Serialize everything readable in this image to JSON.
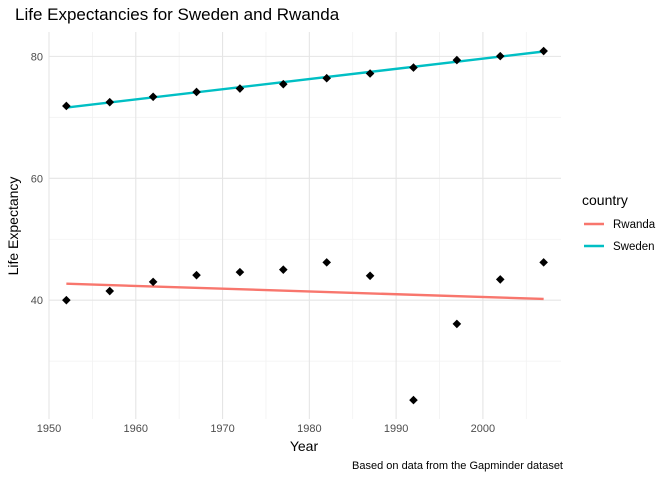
{
  "chart_data": {
    "type": "scatter",
    "title": "Life Expectancies for Sweden and Rwanda",
    "xlabel": "Year",
    "ylabel": "Life Expectancy",
    "caption": "Based on data from the Gapminder dataset",
    "xlim": [
      1950,
      2009
    ],
    "ylim": [
      20.5,
      84
    ],
    "x_ticks": [
      1950,
      1960,
      1970,
      1980,
      1990,
      2000
    ],
    "x_tick_labels": [
      "1950",
      "1960",
      "1970",
      "1980",
      "1990",
      "2000"
    ],
    "y_ticks": [
      40,
      60,
      80
    ],
    "y_tick_labels": [
      "40",
      "60",
      "80"
    ],
    "grid": true,
    "legend_placement": "right",
    "legend_title": "country",
    "point_color": "#000000",
    "points": [
      {
        "country": "Sweden",
        "x": 1952,
        "y": 71.86
      },
      {
        "country": "Sweden",
        "x": 1957,
        "y": 72.49
      },
      {
        "country": "Sweden",
        "x": 1962,
        "y": 73.37
      },
      {
        "country": "Sweden",
        "x": 1967,
        "y": 74.16
      },
      {
        "country": "Sweden",
        "x": 1972,
        "y": 74.72
      },
      {
        "country": "Sweden",
        "x": 1977,
        "y": 75.44
      },
      {
        "country": "Sweden",
        "x": 1982,
        "y": 76.42
      },
      {
        "country": "Sweden",
        "x": 1987,
        "y": 77.19
      },
      {
        "country": "Sweden",
        "x": 1992,
        "y": 78.16
      },
      {
        "country": "Sweden",
        "x": 1997,
        "y": 79.39
      },
      {
        "country": "Sweden",
        "x": 2002,
        "y": 80.04
      },
      {
        "country": "Sweden",
        "x": 2007,
        "y": 80.88
      },
      {
        "country": "Rwanda",
        "x": 1952,
        "y": 40.0
      },
      {
        "country": "Rwanda",
        "x": 1957,
        "y": 41.5
      },
      {
        "country": "Rwanda",
        "x": 1962,
        "y": 43.0
      },
      {
        "country": "Rwanda",
        "x": 1967,
        "y": 44.1
      },
      {
        "country": "Rwanda",
        "x": 1972,
        "y": 44.6
      },
      {
        "country": "Rwanda",
        "x": 1977,
        "y": 45.0
      },
      {
        "country": "Rwanda",
        "x": 1982,
        "y": 46.2
      },
      {
        "country": "Rwanda",
        "x": 1987,
        "y": 44.0
      },
      {
        "country": "Rwanda",
        "x": 1992,
        "y": 23.6
      },
      {
        "country": "Rwanda",
        "x": 1997,
        "y": 36.1
      },
      {
        "country": "Rwanda",
        "x": 2002,
        "y": 43.4
      },
      {
        "country": "Rwanda",
        "x": 2007,
        "y": 46.2
      }
    ],
    "series": [
      {
        "name": "Rwanda",
        "type": "line",
        "color": "#F8766D",
        "x": [
          1952,
          2007
        ],
        "values": [
          42.7,
          40.2
        ]
      },
      {
        "name": "Sweden",
        "type": "line",
        "color": "#00BFC4",
        "x": [
          1952,
          2007
        ],
        "values": [
          71.6,
          80.8
        ]
      }
    ]
  }
}
